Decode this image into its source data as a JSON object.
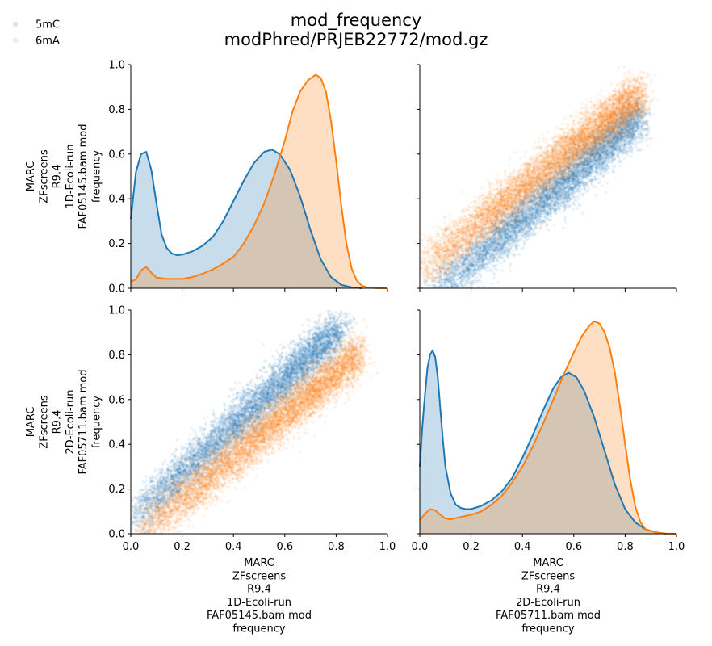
{
  "figure": {
    "title_line1": "mod_frequency",
    "title_line2": "modPhred/PRJEB22772/mod.gz"
  },
  "legend": {
    "placement": "top-left",
    "entries": [
      {
        "label": "5mC",
        "color": "#1f77b4"
      },
      {
        "label": "6mA",
        "color": "#ff7f0e"
      }
    ]
  },
  "chart_data": {
    "type": "pairplot",
    "variables": [
      [
        "MARC",
        "ZFscreens",
        "R9.4",
        "1D-Ecoli-run",
        "FAF05145.bam mod",
        "frequency"
      ],
      [
        "MARC",
        "ZFscreens",
        "R9.4",
        "2D-Ecoli-run",
        "FAF05711.bam mod",
        "frequency"
      ]
    ],
    "xlim": [
      0.0,
      1.0
    ],
    "ylim": [
      0.0,
      1.0
    ],
    "ticks": [
      "0.0",
      "0.2",
      "0.4",
      "0.6",
      "0.8",
      "1.0"
    ],
    "grid": false,
    "panels": [
      {
        "row": 0,
        "col": 0,
        "type": "area",
        "series": [
          {
            "name": "5mC",
            "color": "#1f77b4",
            "x": [
              0.0,
              0.02,
              0.04,
              0.06,
              0.08,
              0.1,
              0.12,
              0.14,
              0.16,
              0.18,
              0.2,
              0.24,
              0.28,
              0.32,
              0.36,
              0.4,
              0.44,
              0.48,
              0.52,
              0.55,
              0.58,
              0.62,
              0.66,
              0.7,
              0.74,
              0.78,
              0.82,
              0.86,
              0.9
            ],
            "y": [
              0.31,
              0.52,
              0.6,
              0.61,
              0.53,
              0.38,
              0.24,
              0.18,
              0.155,
              0.148,
              0.15,
              0.165,
              0.19,
              0.23,
              0.3,
              0.39,
              0.48,
              0.56,
              0.61,
              0.62,
              0.6,
              0.53,
              0.41,
              0.26,
              0.13,
              0.05,
              0.015,
              0.004,
              0.0
            ]
          },
          {
            "name": "6mA",
            "color": "#ff7f0e",
            "x": [
              0.0,
              0.02,
              0.04,
              0.06,
              0.08,
              0.1,
              0.14,
              0.2,
              0.24,
              0.28,
              0.32,
              0.36,
              0.4,
              0.44,
              0.48,
              0.52,
              0.56,
              0.6,
              0.63,
              0.66,
              0.69,
              0.72,
              0.74,
              0.76,
              0.78,
              0.8,
              0.82,
              0.84,
              0.86,
              0.88,
              0.9,
              0.92,
              0.95,
              1.0
            ],
            "y": [
              0.03,
              0.04,
              0.08,
              0.095,
              0.07,
              0.048,
              0.042,
              0.042,
              0.05,
              0.065,
              0.085,
              0.11,
              0.14,
              0.2,
              0.28,
              0.38,
              0.51,
              0.66,
              0.79,
              0.88,
              0.93,
              0.955,
              0.94,
              0.88,
              0.75,
              0.57,
              0.37,
              0.2,
              0.09,
              0.035,
              0.012,
              0.004,
              0.001,
              0.0
            ]
          }
        ]
      },
      {
        "row": 0,
        "col": 1,
        "type": "scatter",
        "series": [
          {
            "name": "5mC",
            "color": "#1f77b4",
            "x_range": [
              0.05,
              0.86
            ],
            "slope": 0.99,
            "intercept": -0.08,
            "spread": 0.05
          },
          {
            "name": "6mA",
            "color": "#ff7f0e",
            "x_range": [
              0.0,
              0.86
            ],
            "slope": 0.92,
            "intercept": 0.08,
            "spread": 0.05
          }
        ]
      },
      {
        "row": 1,
        "col": 0,
        "type": "scatter",
        "series": [
          {
            "name": "5mC",
            "color": "#1f77b4",
            "x_range": [
              0.0,
              0.82
            ],
            "slope": 1.05,
            "intercept": 0.06,
            "spread": 0.05
          },
          {
            "name": "6mA",
            "color": "#ff7f0e",
            "x_range": [
              0.03,
              0.89
            ],
            "slope": 0.95,
            "intercept": -0.04,
            "spread": 0.05
          }
        ]
      },
      {
        "row": 1,
        "col": 1,
        "type": "area",
        "series": [
          {
            "name": "5mC",
            "color": "#1f77b4",
            "x": [
              0.0,
              0.01,
              0.02,
              0.03,
              0.04,
              0.05,
              0.06,
              0.07,
              0.08,
              0.09,
              0.1,
              0.12,
              0.14,
              0.16,
              0.18,
              0.2,
              0.24,
              0.28,
              0.32,
              0.36,
              0.4,
              0.44,
              0.48,
              0.52,
              0.55,
              0.58,
              0.61,
              0.64,
              0.68,
              0.72,
              0.76,
              0.8,
              0.84,
              0.88,
              0.92,
              0.96
            ],
            "y": [
              0.3,
              0.48,
              0.62,
              0.74,
              0.8,
              0.82,
              0.79,
              0.7,
              0.56,
              0.42,
              0.3,
              0.18,
              0.13,
              0.115,
              0.11,
              0.11,
              0.125,
              0.15,
              0.19,
              0.25,
              0.34,
              0.44,
              0.55,
              0.65,
              0.7,
              0.72,
              0.7,
              0.64,
              0.52,
              0.37,
              0.22,
              0.11,
              0.05,
              0.02,
              0.006,
              0.0
            ]
          },
          {
            "name": "6mA",
            "color": "#ff7f0e",
            "x": [
              0.0,
              0.02,
              0.04,
              0.06,
              0.08,
              0.1,
              0.12,
              0.16,
              0.2,
              0.24,
              0.28,
              0.32,
              0.36,
              0.4,
              0.44,
              0.48,
              0.52,
              0.56,
              0.6,
              0.63,
              0.66,
              0.68,
              0.7,
              0.72,
              0.74,
              0.76,
              0.78,
              0.8,
              0.82,
              0.84,
              0.86,
              0.88,
              0.92,
              0.96,
              1.0
            ],
            "y": [
              0.06,
              0.09,
              0.11,
              0.105,
              0.085,
              0.068,
              0.065,
              0.075,
              0.085,
              0.1,
              0.13,
              0.17,
              0.23,
              0.3,
              0.39,
              0.49,
              0.6,
              0.71,
              0.81,
              0.88,
              0.93,
              0.95,
              0.94,
              0.9,
              0.83,
              0.72,
              0.57,
              0.4,
              0.24,
              0.12,
              0.05,
              0.02,
              0.005,
              0.001,
              0.0
            ]
          }
        ]
      }
    ]
  }
}
